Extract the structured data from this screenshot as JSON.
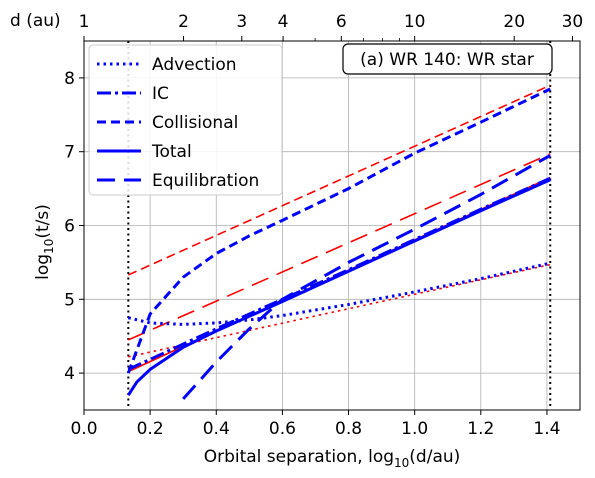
{
  "chart_data": {
    "type": "line",
    "title": "",
    "annotation": "(a) WR 140: WR star",
    "xlabel": "Orbital separation, log₁₀(d/au)",
    "ylabel": "log₁₀(t/s)",
    "top_axis_label": "d (au)",
    "xlim": [
      0.0,
      1.5
    ],
    "ylim": [
      3.5,
      8.5
    ],
    "xticks": [
      {
        "value": 0.0,
        "label": "0.0"
      },
      {
        "value": 0.2,
        "label": "0.2"
      },
      {
        "value": 0.4,
        "label": "0.4"
      },
      {
        "value": 0.6,
        "label": "0.6"
      },
      {
        "value": 0.8,
        "label": "0.8"
      },
      {
        "value": 1.0,
        "label": "1.0"
      },
      {
        "value": 1.2,
        "label": "1.2"
      },
      {
        "value": 1.4,
        "label": "1.4"
      }
    ],
    "yticks": [
      {
        "value": 4,
        "label": "4"
      },
      {
        "value": 5,
        "label": "5"
      },
      {
        "value": 6,
        "label": "6"
      },
      {
        "value": 7,
        "label": "7"
      },
      {
        "value": 8,
        "label": "8"
      }
    ],
    "top_ticks": [
      {
        "value": 1,
        "label": "1"
      },
      {
        "value": 2,
        "label": "2"
      },
      {
        "value": 3,
        "label": "3"
      },
      {
        "value": 4,
        "label": "4"
      },
      {
        "value": 6,
        "label": "6"
      },
      {
        "value": 10,
        "label": "10"
      },
      {
        "value": 20,
        "label": "20"
      },
      {
        "value": 30,
        "label": "30"
      }
    ],
    "top_minor_ticks": [
      5,
      7,
      8,
      9
    ],
    "grid": true,
    "legend_position": "upper-left",
    "vlines": [
      0.134,
      1.41
    ],
    "series": [
      {
        "name": "Advection",
        "color": "#0000ff",
        "style": "dotted",
        "width": 3,
        "x": [
          0.134,
          0.2,
          0.3,
          0.4,
          0.5,
          0.6,
          0.8,
          1.0,
          1.2,
          1.41
        ],
        "y": [
          4.75,
          4.68,
          4.66,
          4.68,
          4.72,
          4.78,
          4.93,
          5.1,
          5.28,
          5.49
        ]
      },
      {
        "name": "IC",
        "color": "#0000ff",
        "style": "dashdot",
        "width": 3,
        "x": [
          0.134,
          0.4,
          0.6,
          0.8,
          1.0,
          1.2,
          1.41
        ],
        "y": [
          4.05,
          4.6,
          5.0,
          5.4,
          5.81,
          6.22,
          6.64
        ]
      },
      {
        "name": "Collisional",
        "color": "#0000ff",
        "style": "dashed",
        "width": 3,
        "x": [
          0.134,
          0.2,
          0.3,
          0.4,
          0.5,
          0.6,
          0.8,
          1.0,
          1.2,
          1.41
        ],
        "y": [
          4.0,
          4.8,
          5.3,
          5.62,
          5.86,
          6.07,
          6.5,
          6.98,
          7.4,
          7.85
        ]
      },
      {
        "name": "Total",
        "color": "#0000ff",
        "style": "solid",
        "width": 3,
        "x": [
          0.134,
          0.16,
          0.2,
          0.3,
          0.4,
          0.6,
          0.8,
          1.0,
          1.2,
          1.41
        ],
        "y": [
          3.7,
          3.88,
          4.05,
          4.35,
          4.57,
          4.97,
          5.38,
          5.79,
          6.2,
          6.62
        ]
      },
      {
        "name": "Equilibration",
        "color": "#0000ff",
        "style": "longdash",
        "width": 3,
        "x": [
          0.3,
          0.4,
          0.5,
          0.6,
          0.8,
          1.0,
          1.2,
          1.41
        ],
        "y": [
          3.65,
          4.15,
          4.6,
          5.0,
          5.5,
          5.95,
          6.42,
          6.95
        ]
      },
      {
        "color": "#ff0000",
        "style": "dashed",
        "width": 1.6,
        "x": [
          0.134,
          1.41
        ],
        "y": [
          5.33,
          7.9
        ]
      },
      {
        "color": "#ff0000",
        "style": "longdash",
        "width": 1.6,
        "x": [
          0.134,
          1.41
        ],
        "y": [
          4.45,
          6.97
        ]
      },
      {
        "color": "#ff0000",
        "style": "solid",
        "width": 1.6,
        "x": [
          0.134,
          1.41
        ],
        "y": [
          4.02,
          6.65
        ]
      },
      {
        "color": "#ff0000",
        "style": "dotted",
        "width": 1.6,
        "x": [
          0.134,
          1.41
        ],
        "y": [
          4.22,
          5.47
        ]
      }
    ]
  }
}
